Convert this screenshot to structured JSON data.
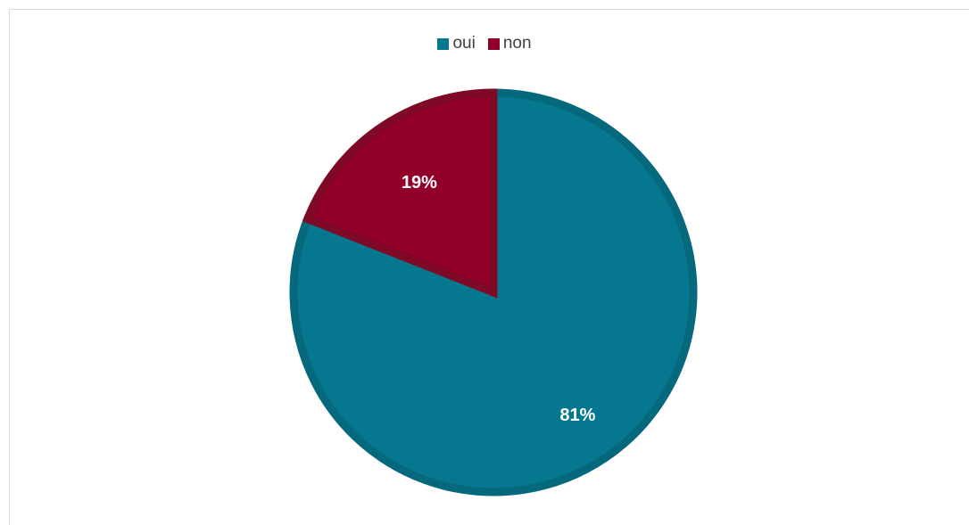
{
  "chart_data": {
    "type": "pie",
    "title": "",
    "legend_position": "top",
    "slices": [
      {
        "name": "oui",
        "value": 81,
        "label": "81%",
        "color": "#05788F",
        "edge": "#06687C"
      },
      {
        "name": "non",
        "value": 19,
        "label": "19%",
        "color": "#92002A",
        "edge": "#7E0A27"
      }
    ]
  }
}
